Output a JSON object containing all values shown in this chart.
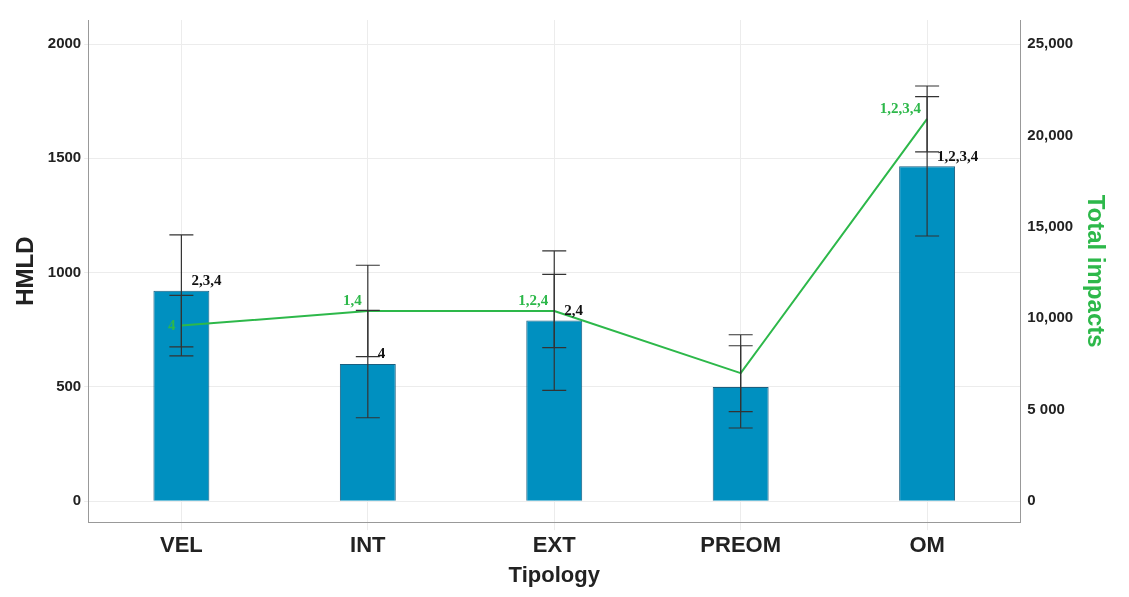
{
  "chart_data": {
    "type": "bar",
    "xlabel": "Tipology",
    "ylabel": "HMLD",
    "y2label": "Total impacts",
    "categories": [
      "VEL",
      "INT",
      "EXT",
      "PREOM",
      "OM"
    ],
    "series": [
      {
        "color": "#0090c0",
        "values": [
          920,
          600,
          790,
          500,
          1465
        ],
        "errors": [
          245,
          235,
          305,
          180,
          305
        ]
      },
      {
        "type": "line",
        "axis": "y2",
        "color": "#2db84a",
        "values": [
          9600,
          10400,
          10400,
          7000,
          20900
        ],
        "errors": [
          1650,
          2500,
          2000,
          2100,
          1800
        ]
      }
    ],
    "annotations": [
      {
        "text": "2,3,4",
        "x": "VEL",
        "y": 920
      },
      {
        "text": "4",
        "x": "INT",
        "y": 600
      },
      {
        "text": "2,4",
        "x": "EXT",
        "y": 790
      },
      {
        "text": "1,2,3,4",
        "x": "OM",
        "y": 1465
      },
      {
        "text": "4",
        "x": "VEL",
        "y": 768
      },
      {
        "text": "1,4",
        "x": "INT",
        "y": 832
      },
      {
        "text": "1,2,4",
        "x": "EXT",
        "y": 832
      },
      {
        "text": "1,2,3,4",
        "x": "OM",
        "y": 1672
      }
    ],
    "ylim": [
      -92,
      2105
    ],
    "yticks": [
      0,
      500,
      1000,
      1500,
      2000
    ],
    "y2lim": [
      -1150,
      26310
    ],
    "y2ticks": [
      0,
      {
        "value": 5000,
        "label": "5 000"
      },
      {
        "value": 10000,
        "label": "10,000"
      },
      {
        "value": 15000,
        "label": "15,000"
      },
      {
        "value": 20000,
        "label": "20,000"
      },
      {
        "value": 25000,
        "label": "25,000"
      }
    ],
    "grid": true,
    "legend": false
  }
}
